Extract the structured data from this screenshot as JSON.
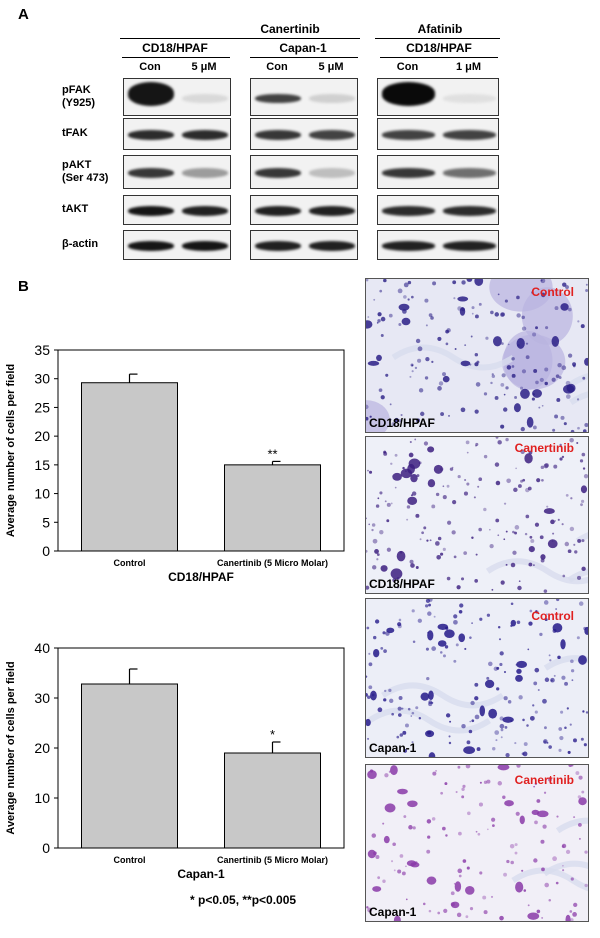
{
  "panel_a": {
    "letter": "A",
    "drug_headers": [
      "Canertinib",
      "Afatinib"
    ],
    "cell_headers": [
      "CD18/HPAF",
      "Capan-1",
      "CD18/HPAF"
    ],
    "lane_labels": [
      "Con",
      "5 μM",
      "Con",
      "5 μM",
      "Con",
      "1 μM"
    ],
    "row_labels": [
      {
        "line1": "pFAK",
        "line2": "(Y925)"
      },
      {
        "line1": "tFAK",
        "line2": ""
      },
      {
        "line1": "pAKT",
        "line2": "(Ser 473)"
      },
      {
        "line1": "tAKT",
        "line2": ""
      },
      {
        "line1": "β-actin",
        "line2": ""
      }
    ],
    "band_intensity": [
      [
        0.95,
        0.08,
        0.75,
        0.12,
        1.0,
        0.05
      ],
      [
        0.85,
        0.85,
        0.8,
        0.75,
        0.75,
        0.75
      ],
      [
        0.8,
        0.35,
        0.8,
        0.2,
        0.8,
        0.55
      ],
      [
        0.95,
        0.9,
        0.9,
        0.9,
        0.85,
        0.85
      ],
      [
        0.95,
        0.95,
        0.9,
        0.9,
        0.9,
        0.9
      ]
    ]
  },
  "panel_b": {
    "letter": "B",
    "footnote": "* p<0.05, **p<0.005",
    "photos": [
      {
        "condition": "Control",
        "cell_line": "CD18/HPAF"
      },
      {
        "condition": "Canertinib",
        "cell_line": "CD18/HPAF"
      },
      {
        "condition": "Control",
        "cell_line": "Capan-1"
      },
      {
        "condition": "Canertinib",
        "cell_line": "Capan-1"
      }
    ]
  },
  "chart_data": [
    {
      "type": "bar",
      "title": "CD18/HPAF",
      "ylabel": "Average number of cells per field",
      "categories": [
        "Control",
        "Canertinib (5 Micro Molar)"
      ],
      "values": [
        29.3,
        15.0
      ],
      "errors": [
        1.5,
        0.6
      ],
      "annotations": [
        "",
        "**"
      ],
      "ylim": [
        0,
        35
      ],
      "yticks": [
        0,
        5,
        10,
        15,
        20,
        25,
        30,
        35
      ],
      "bar_color": "#c8c8c8"
    },
    {
      "type": "bar",
      "title": "Capan-1",
      "ylabel": "Average number of cells per field",
      "categories": [
        "Control",
        "Canertinib (5 Micro Molar)"
      ],
      "values": [
        32.8,
        19.0
      ],
      "errors": [
        3.0,
        2.2
      ],
      "annotations": [
        "",
        "*"
      ],
      "ylim": [
        0,
        40
      ],
      "yticks": [
        0,
        10,
        20,
        30,
        40
      ],
      "bar_color": "#c8c8c8"
    }
  ],
  "colors": {
    "annotation_red": "#e02020",
    "stain_purple": "#3a2a8c",
    "stain_light": "#b9b4e0"
  }
}
